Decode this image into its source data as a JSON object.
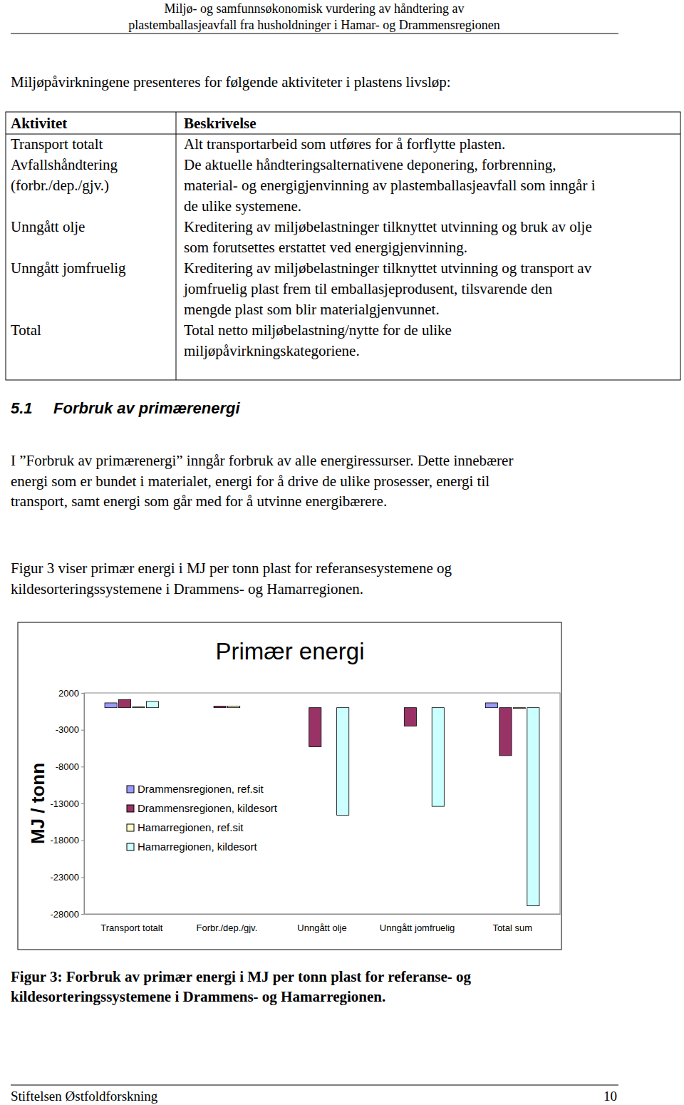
{
  "header": {
    "lines": [
      "Miljø- og samfunnsøkonomisk vurdering av håndtering av",
      "plastemballasjeavfall fra husholdninger i Hamar- og Drammensregionen"
    ]
  },
  "intro": "Miljøpåvirkningene presenteres for følgende aktiviteter i plastens livsløp:",
  "table": {
    "header": [
      "Aktivitet",
      "Beskrivelse"
    ],
    "rows": [
      [
        [
          "Transport totalt"
        ],
        [
          "Alt transportarbeid som utføres for å forflytte plasten."
        ]
      ],
      [
        [
          "Avfallshåndtering",
          "(forbr./dep./gjv.)"
        ],
        [
          "De aktuelle håndteringsalternativene deponering, forbrenning,",
          "material- og energigjenvinning av plastemballasjeavfall som inngår i",
          "de ulike systemene."
        ]
      ],
      [
        [
          "Unngått olje"
        ],
        [
          "Kreditering av miljøbelastninger tilknyttet utvinning og bruk av olje",
          "som forutsettes erstattet ved energigjenvinning."
        ]
      ],
      [
        [
          "Unngått jomfruelig"
        ],
        [
          "Kreditering av miljøbelastninger tilknyttet utvinning og transport av",
          "jomfruelig plast frem til emballasjeprodusent, tilsvarende den",
          "mengde plast som blir materialgjenvunnet."
        ]
      ],
      [
        [
          "Total"
        ],
        [
          "Total netto miljøbelastning/nytte for de ulike",
          "miljøpåvirkningskategoriene."
        ]
      ]
    ]
  },
  "section": {
    "number": "5.1",
    "title": "Forbruk av primærenergi"
  },
  "paragraphs": [
    [
      "I ”Forbruk av primærenergi” inngår forbruk av alle energiressurser. Dette innebærer",
      "energi som er bundet i materialet, energi for å drive de ulike prosesser, energi til",
      "transport, samt energi som går med for å utvinne energibærere."
    ],
    [
      "Figur 3 viser primær energi i MJ per tonn plast for referansesystemene og",
      "kildesorteringssystemene i Drammens- og Hamarregionen."
    ]
  ],
  "chart_data": {
    "type": "bar",
    "title": "Primær energi",
    "y_label": "MJ / tonn",
    "categories": [
      "Transport totalt",
      "Forbr./dep./gjv.",
      "Unngått olje",
      "Unngått jomfruelig",
      "Total sum"
    ],
    "series": [
      {
        "name": "Drammensregionen, ref.sit",
        "color": "#9999ff",
        "values": [
          650,
          0,
          0,
          0,
          650
        ]
      },
      {
        "name": "Drammensregionen, kildesort",
        "color": "#993366",
        "values": [
          1100,
          200,
          -5300,
          -2500,
          -6500
        ]
      },
      {
        "name": "Hamarregionen, ref.sit",
        "color": "#ffffcc",
        "values": [
          100,
          200,
          0,
          0,
          -100
        ]
      },
      {
        "name": "Hamarregionen, kildesort",
        "color": "#ccffff",
        "values": [
          850,
          0,
          -14600,
          -13400,
          -26900
        ]
      }
    ],
    "ylim": [
      -28000,
      2000
    ],
    "yticks": [
      2000,
      -3000,
      -8000,
      -13000,
      -18000,
      -23000,
      -28000
    ],
    "grid": false,
    "legend": "left"
  },
  "caption": [
    "Figur 3: Forbruk av primær energi i MJ per tonn plast for referanse- og",
    "kildesorteringssystemene i Drammens- og Hamarregionen."
  ],
  "footer": {
    "left": "Stiftelsen Østfoldforskning",
    "page": 10
  }
}
